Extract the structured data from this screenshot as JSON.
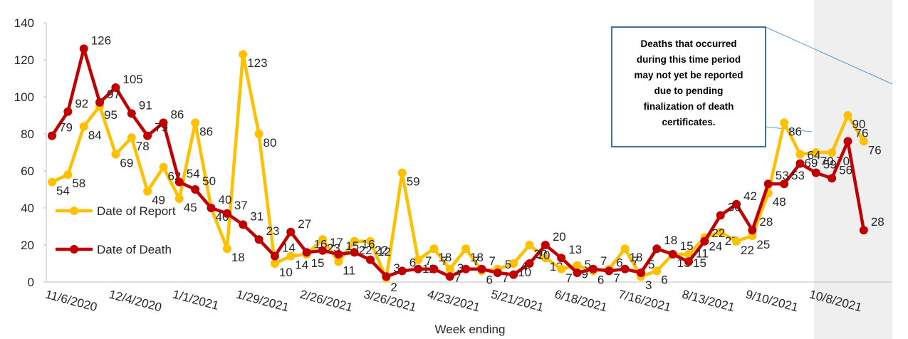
{
  "chart_data": {
    "type": "line",
    "x_label": "Week ending",
    "categories": [
      null,
      null,
      "11/6/2020",
      null,
      null,
      null,
      "12/4/2020",
      null,
      null,
      null,
      "1/1/2021",
      null,
      null,
      null,
      "1/29/2021",
      null,
      null,
      null,
      "2/26/2021",
      null,
      null,
      null,
      "3/26/2021",
      null,
      null,
      null,
      "4/23/2021",
      null,
      null,
      null,
      "5/21/2021",
      null,
      null,
      null,
      "6/18/2021",
      null,
      null,
      null,
      "7/16/2021",
      null,
      null,
      null,
      "8/13/2021",
      null,
      null,
      null,
      "9/10/2021",
      null,
      null,
      null,
      "10/8/2021",
      null
    ],
    "series": [
      {
        "name": "Date of Report",
        "color": "#FFC000",
        "values": [
          54,
          58,
          84,
          95,
          69,
          78,
          49,
          62,
          45,
          86,
          40,
          18,
          123,
          80,
          10,
          14,
          15,
          23,
          11,
          22,
          22,
          2,
          59,
          12,
          18,
          7,
          18,
          6,
          7,
          10,
          20,
          13,
          7,
          9,
          6,
          7,
          18,
          3,
          6,
          15,
          15,
          24,
          27,
          22,
          25,
          48,
          86,
          69,
          70,
          70,
          90,
          76
        ]
      },
      {
        "name": "Date of Death",
        "color": "#C00000",
        "values": [
          79,
          92,
          126,
          97,
          105,
          91,
          79,
          86,
          54,
          50,
          40,
          37,
          31,
          23,
          14,
          27,
          16,
          17,
          15,
          16,
          12,
          3,
          6,
          7,
          7,
          3,
          7,
          7,
          5,
          4,
          10,
          20,
          13,
          5,
          7,
          6,
          7,
          5,
          18,
          15,
          11,
          22,
          36,
          42,
          28,
          53,
          53,
          64,
          59,
          56,
          76,
          28
        ]
      }
    ],
    "ylim": [
      0,
      140
    ],
    "yticks": [
      0,
      20,
      40,
      60,
      80,
      100,
      120,
      140
    ],
    "annotation": "Deaths that occurred during this time period may not yet be reported due to pending finalization of death certificates."
  }
}
